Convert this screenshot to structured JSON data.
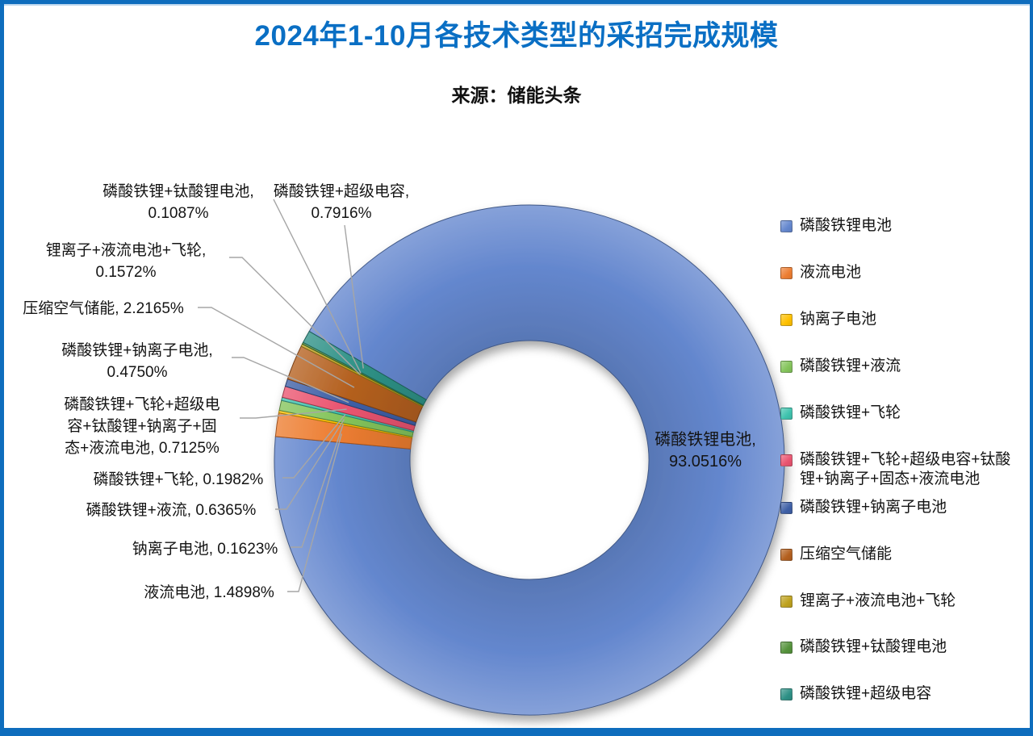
{
  "frame": {
    "border_color": "#0E6DBD",
    "inner_accent_color": "#BDD7EE",
    "background": "#FFFFFF"
  },
  "header": {
    "title": "2024年1-10月各技术类型的采招完成规模",
    "title_color": "#0A6FC4",
    "subtitle": "来源：储能头条"
  },
  "chart_data": {
    "type": "pie",
    "subtype": "donut",
    "title": "2024年1-10月各技术类型的采招完成规模",
    "source": "储能头条",
    "unit": "%",
    "start_angle_deg": 300.3,
    "legend_position": "right",
    "leader_line_color": "#A6A6A6",
    "slices": [
      {
        "label": "磷酸铁锂电池",
        "value": 93.0516,
        "color": "#6487CE"
      },
      {
        "label": "液流电池",
        "value": 1.4898,
        "color": "#ED7D31"
      },
      {
        "label": "钠离子电池",
        "value": 0.1623,
        "color": "#FFC000"
      },
      {
        "label": "磷酸铁锂+液流",
        "value": 0.6365,
        "color": "#84C45B"
      },
      {
        "label": "磷酸铁锂+飞轮",
        "value": 0.1982,
        "color": "#3FC3AE"
      },
      {
        "label": "磷酸铁锂+飞轮+超级电容+钛酸锂+钠离子+固态+液流电池",
        "value": 0.7125,
        "color": "#EA5470"
      },
      {
        "label": "磷酸铁锂+钠离子电池",
        "value": 0.475,
        "color": "#3E5FA6"
      },
      {
        "label": "压缩空气储能",
        "value": 2.2165,
        "color": "#B4601F"
      },
      {
        "label": "锂离子+液流电池+飞轮",
        "value": 0.1572,
        "color": "#BFA21E"
      },
      {
        "label": "磷酸铁锂+钛酸锂电池",
        "value": 0.1087,
        "color": "#55933C"
      },
      {
        "label": "磷酸铁锂+超级电容",
        "value": 0.7916,
        "color": "#2E9186"
      }
    ],
    "inside_label": {
      "lines": [
        "磷酸铁锂电池,",
        "93.0516%"
      ]
    },
    "callouts": [
      {
        "lines": [
          "磷酸铁锂+钛酸锂电池,",
          "0.1087%"
        ]
      },
      {
        "lines": [
          "磷酸铁锂+超级电容,",
          "0.7916%"
        ]
      },
      {
        "lines": [
          "锂离子+液流电池+飞轮,",
          "0.1572%"
        ]
      },
      {
        "lines": [
          "压缩空气储能, 2.2165%"
        ]
      },
      {
        "lines": [
          "磷酸铁锂+钠离子电池,",
          "0.4750%"
        ]
      },
      {
        "lines": [
          "磷酸铁锂+飞轮+超级电",
          "容+钛酸锂+钠离子+固",
          "态+液流电池, 0.7125%"
        ]
      },
      {
        "lines": [
          "磷酸铁锂+飞轮, 0.1982%"
        ]
      },
      {
        "lines": [
          "磷酸铁锂+液流, 0.6365%"
        ]
      },
      {
        "lines": [
          "钠离子电池, 0.1623%"
        ]
      },
      {
        "lines": [
          "液流电池, 1.4898%"
        ]
      }
    ]
  }
}
